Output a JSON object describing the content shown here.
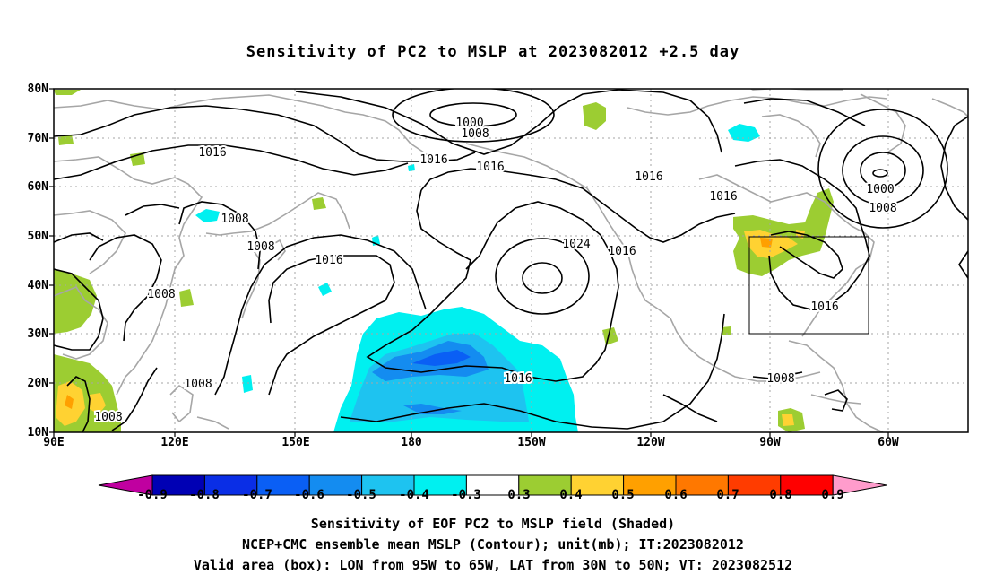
{
  "title": "Sensitivity of PC2 to MSLP at 2023082012 +2.5 day",
  "lat_labels": [
    "80N",
    "70N",
    "60N",
    "50N",
    "40N",
    "30N",
    "20N",
    "10N"
  ],
  "lon_labels": [
    "90E",
    "120E",
    "150E",
    "180",
    "150W",
    "120W",
    "90W",
    "60W"
  ],
  "contour_labels": [
    "1000",
    "1008",
    "1016",
    "1016",
    "1008",
    "1008",
    "1016",
    "1008",
    "1016",
    "1024",
    "1016",
    "1016",
    "1016",
    "1016",
    "1000",
    "1008",
    "1016",
    "1008",
    "1008",
    "1008"
  ],
  "colorbar": {
    "ticks": [
      "-0.9",
      "-0.8",
      "-0.7",
      "-0.6",
      "-0.5",
      "-0.4",
      "-0.3",
      "0.3",
      "0.4",
      "0.5",
      "0.6",
      "0.7",
      "0.8",
      "0.9"
    ],
    "colors": [
      "#c000a0",
      "#0000b4",
      "#0a2ee6",
      "#0a5ff5",
      "#148cf0",
      "#1ec3f0",
      "#00f0f0",
      "#ffffff",
      "#9ccd32",
      "#ffd232",
      "#ffa000",
      "#ff7800",
      "#ff3c00",
      "#ff0000",
      "#ff9ccc"
    ]
  },
  "captions": [
    "Sensitivity of EOF PC2 to MSLP field (Shaded)",
    "NCEP+CMC ensemble mean MSLP (Contour); unit(mb); IT:2023082012",
    "Valid area (box): LON from 95W to 65W, LAT from 30N to 50N; VT: 2023082512"
  ]
}
